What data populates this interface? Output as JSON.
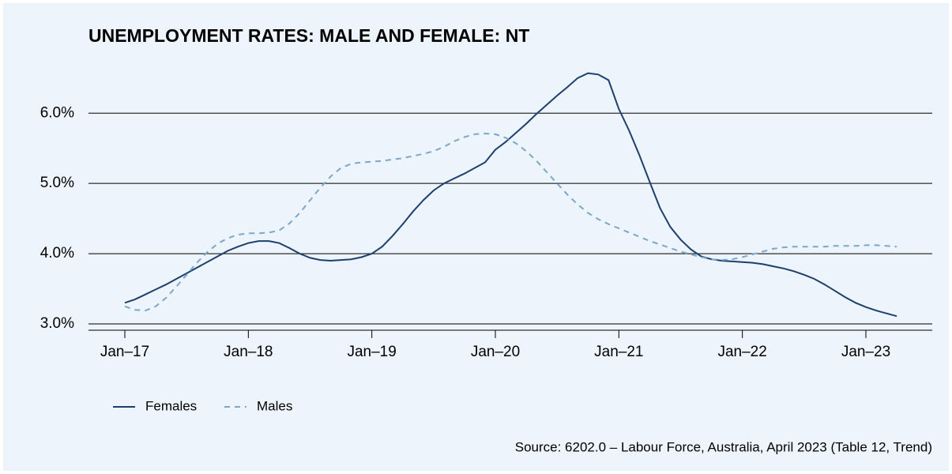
{
  "chart_data": {
    "type": "line",
    "title": "UNEMPLOYMENT RATES: MALE AND FEMALE: NT",
    "source": "Source: 6202.0 – Labour Force, Australia, April 2023 (Table 12, Trend)",
    "x": [
      "2017-01",
      "2017-02",
      "2017-03",
      "2017-04",
      "2017-05",
      "2017-06",
      "2017-07",
      "2017-08",
      "2017-09",
      "2017-10",
      "2017-11",
      "2017-12",
      "2018-01",
      "2018-02",
      "2018-03",
      "2018-04",
      "2018-05",
      "2018-06",
      "2018-07",
      "2018-08",
      "2018-09",
      "2018-10",
      "2018-11",
      "2018-12",
      "2019-01",
      "2019-02",
      "2019-03",
      "2019-04",
      "2019-05",
      "2019-06",
      "2019-07",
      "2019-08",
      "2019-09",
      "2019-10",
      "2019-11",
      "2019-12",
      "2020-01",
      "2020-02",
      "2020-03",
      "2020-04",
      "2020-05",
      "2020-06",
      "2020-07",
      "2020-08",
      "2020-09",
      "2020-10",
      "2020-11",
      "2020-12",
      "2021-01",
      "2021-02",
      "2021-03",
      "2021-04",
      "2021-05",
      "2021-06",
      "2021-07",
      "2021-08",
      "2021-09",
      "2021-10",
      "2021-11",
      "2021-12",
      "2022-01",
      "2022-02",
      "2022-03",
      "2022-04",
      "2022-05",
      "2022-06",
      "2022-07",
      "2022-08",
      "2022-09",
      "2022-10",
      "2022-11",
      "2022-12",
      "2023-01",
      "2023-02",
      "2023-03",
      "2023-04"
    ],
    "series": [
      {
        "name": "Females",
        "color": "#1d3f6e",
        "dash": false,
        "values": [
          3.3,
          3.35,
          3.42,
          3.49,
          3.56,
          3.64,
          3.72,
          3.8,
          3.88,
          3.96,
          4.04,
          4.1,
          4.15,
          4.18,
          4.18,
          4.15,
          4.08,
          4.0,
          3.94,
          3.91,
          3.9,
          3.91,
          3.92,
          3.95,
          4.0,
          4.1,
          4.25,
          4.42,
          4.6,
          4.76,
          4.9,
          5.0,
          5.07,
          5.14,
          5.22,
          5.3,
          5.48,
          5.59,
          5.72,
          5.85,
          5.99,
          6.12,
          6.25,
          6.37,
          6.5,
          6.57,
          6.55,
          6.47,
          6.06,
          5.75,
          5.4,
          5.02,
          4.65,
          4.38,
          4.2,
          4.06,
          3.96,
          3.92,
          3.9,
          3.89,
          3.88,
          3.87,
          3.85,
          3.82,
          3.79,
          3.75,
          3.7,
          3.64,
          3.56,
          3.47,
          3.38,
          3.3,
          3.24,
          3.19,
          3.15,
          3.11
        ]
      },
      {
        "name": "Males",
        "color": "#7ba7cc",
        "dash": true,
        "values": [
          3.25,
          3.2,
          3.19,
          3.25,
          3.37,
          3.53,
          3.7,
          3.87,
          4.02,
          4.14,
          4.22,
          4.27,
          4.29,
          4.29,
          4.3,
          4.33,
          4.43,
          4.58,
          4.76,
          4.94,
          5.1,
          5.22,
          5.28,
          5.3,
          5.31,
          5.32,
          5.34,
          5.36,
          5.39,
          5.42,
          5.46,
          5.52,
          5.6,
          5.66,
          5.7,
          5.71,
          5.7,
          5.65,
          5.57,
          5.46,
          5.32,
          5.16,
          5.0,
          4.84,
          4.7,
          4.58,
          4.49,
          4.42,
          4.36,
          4.3,
          4.24,
          4.18,
          4.13,
          4.08,
          4.03,
          3.99,
          3.95,
          3.92,
          3.91,
          3.92,
          3.95,
          3.99,
          4.03,
          4.07,
          4.09,
          4.1,
          4.1,
          4.1,
          4.1,
          4.11,
          4.11,
          4.11,
          4.12,
          4.12,
          4.11,
          4.1
        ]
      }
    ],
    "xticks": [
      {
        "value": "2017-01",
        "label": "Jan–17"
      },
      {
        "value": "2018-01",
        "label": "Jan–18"
      },
      {
        "value": "2019-01",
        "label": "Jan–19"
      },
      {
        "value": "2020-01",
        "label": "Jan–20"
      },
      {
        "value": "2021-01",
        "label": "Jan–21"
      },
      {
        "value": "2022-01",
        "label": "Jan–22"
      },
      {
        "value": "2023-01",
        "label": "Jan–23"
      }
    ],
    "ylim": [
      2.91,
      6.7
    ],
    "yticks": [
      {
        "value": 3,
        "label": "3.0%"
      },
      {
        "value": 4,
        "label": "4.0%"
      },
      {
        "value": 5,
        "label": "5.0%"
      },
      {
        "value": 6,
        "label": "6.0%"
      }
    ],
    "grid": true,
    "legend": "bottom-left"
  }
}
